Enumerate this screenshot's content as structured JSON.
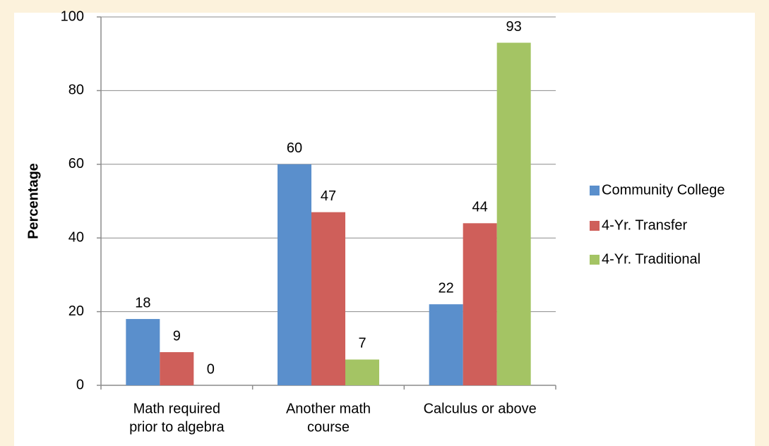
{
  "chart_data": {
    "type": "bar",
    "categories": [
      [
        "Math required",
        "prior to algebra"
      ],
      [
        "Another math",
        "course"
      ],
      [
        "Calculus or above"
      ]
    ],
    "series": [
      {
        "name": "Community College",
        "color": "#5a8fcc",
        "values": [
          18,
          60,
          22
        ]
      },
      {
        "name": "4-Yr. Transfer",
        "color": "#cf5f5a",
        "values": [
          9,
          47,
          44
        ]
      },
      {
        "name": "4-Yr. Traditional",
        "color": "#a4c464",
        "values": [
          0,
          7,
          93
        ]
      }
    ],
    "y_label": "Percentage",
    "ylim": [
      0,
      100
    ],
    "yticks": [
      0,
      20,
      40,
      60,
      80,
      100
    ],
    "grid": true,
    "legend": "right"
  }
}
